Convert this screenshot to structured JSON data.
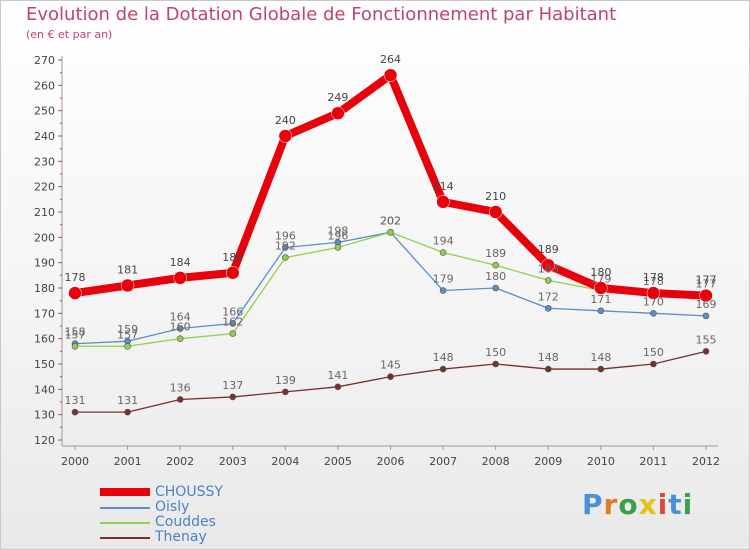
{
  "title": "Evolution de la Dotation Globale de Fonctionnement par Habitant",
  "subtitle": "(en € et par an)",
  "brand": {
    "letters": [
      "P",
      "r",
      "o",
      "x",
      "i",
      "t",
      "i"
    ],
    "colors": [
      "#4a90d9",
      "#e07b2a",
      "#3aa04a",
      "#e3c21a",
      "#d94a3a",
      "#4a90d9",
      "#3aa04a"
    ]
  },
  "chart_data": {
    "type": "line",
    "title": "Evolution de la Dotation Globale de Fonctionnement par Habitant",
    "subtitle": "(en € et par an)",
    "x": [
      "2000",
      "2001",
      "2002",
      "2003",
      "2004",
      "2005",
      "2006",
      "2007",
      "2008",
      "2009",
      "2010",
      "2011",
      "2012"
    ],
    "ylim": [
      120,
      270
    ],
    "yticks": [
      120,
      130,
      140,
      150,
      160,
      170,
      180,
      190,
      200,
      210,
      220,
      230,
      240,
      250,
      260,
      270
    ],
    "grid": false,
    "legend_position": "bottom-left",
    "series": [
      {
        "name": "CHOUSSY",
        "color": "#e8000b",
        "values": [
          178,
          181,
          184,
          186,
          240,
          249,
          264,
          214,
          210,
          189,
          180,
          178,
          177
        ],
        "labels": [
          "178",
          "181",
          "184",
          "186",
          "240",
          "249",
          "264",
          "214",
          "210",
          "189",
          "180",
          "178",
          "177"
        ]
      },
      {
        "name": "Oisly",
        "color": "#5b8fc4",
        "values": [
          158,
          159,
          164,
          166,
          196,
          198,
          202,
          179,
          180,
          172,
          171,
          170,
          169
        ],
        "labels": [
          "158",
          "159",
          "164",
          "166",
          "196",
          "198",
          "202",
          "179",
          "180",
          "172",
          "171",
          "170",
          "169"
        ]
      },
      {
        "name": "Couddes",
        "color": "#8fd14f",
        "values": [
          157,
          157,
          160,
          162,
          192,
          196,
          202,
          194,
          189,
          183,
          179,
          178,
          177
        ],
        "labels": [
          "157",
          "157",
          "160",
          "162",
          "192",
          "196",
          "202",
          "194",
          "189",
          "183",
          "179",
          "178",
          "177"
        ]
      },
      {
        "name": "Thenay",
        "color": "#7a2e2e",
        "values": [
          131,
          131,
          136,
          137,
          139,
          141,
          145,
          148,
          150,
          148,
          148,
          150,
          155
        ],
        "labels": [
          "131",
          "131",
          "136",
          "137",
          "139",
          "141",
          "145",
          "148",
          "150",
          "148",
          "148",
          "150",
          "155"
        ]
      }
    ]
  }
}
